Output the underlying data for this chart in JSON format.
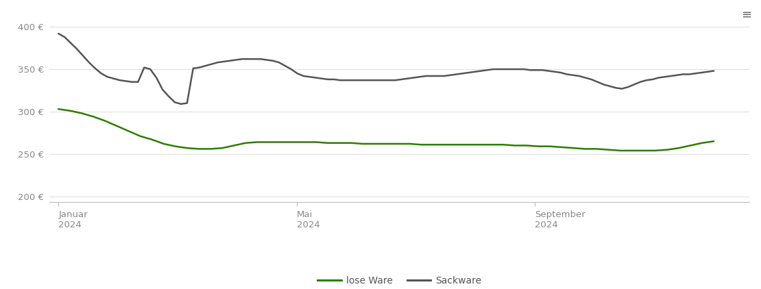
{
  "background_color": "#ffffff",
  "grid_color": "#e0e0e0",
  "ylim": [
    193,
    418
  ],
  "yticks": [
    200,
    250,
    300,
    350,
    400
  ],
  "ytick_labels": [
    "200 €",
    "250 €",
    "300 €",
    "350 €",
    "400 €"
  ],
  "xtick_positions": [
    0,
    4,
    8
  ],
  "xtick_labels": [
    "Januar\n2024",
    "Mai\n2024",
    "September\n2024"
  ],
  "line_lose_color": "#2e7d00",
  "line_sack_color": "#555555",
  "line_width": 1.8,
  "legend_labels": [
    "lose Ware",
    "Sackware"
  ],
  "lose_ware": [
    303,
    301,
    298,
    294,
    289,
    283,
    277,
    271,
    267,
    262,
    259,
    257,
    256,
    256,
    257,
    260,
    263,
    264,
    264,
    264,
    264,
    264,
    264,
    263,
    263,
    263,
    262,
    262,
    262,
    262,
    262,
    261,
    261,
    261,
    261,
    261,
    261,
    261,
    261,
    260,
    260,
    259,
    259,
    258,
    257,
    256,
    256,
    255,
    254,
    254,
    254,
    254,
    255,
    257,
    260,
    263,
    265
  ],
  "sackware": [
    392,
    388,
    381,
    374,
    366,
    358,
    351,
    345,
    341,
    339,
    337,
    336,
    335,
    335,
    352,
    350,
    340,
    326,
    318,
    311,
    309,
    310,
    351,
    352,
    354,
    356,
    358,
    359,
    360,
    361,
    362,
    362,
    362,
    362,
    361,
    360,
    358,
    354,
    350,
    345,
    342,
    341,
    340,
    339,
    338,
    338,
    337,
    337,
    337,
    337,
    337,
    337,
    337,
    337,
    337,
    337,
    338,
    339,
    340,
    341,
    342,
    342,
    342,
    342,
    343,
    344,
    345,
    346,
    347,
    348,
    349,
    350,
    350,
    350,
    350,
    350,
    350,
    349,
    349,
    349,
    348,
    347,
    346,
    344,
    343,
    342,
    340,
    338,
    335,
    332,
    330,
    328,
    327,
    329,
    332,
    335,
    337,
    338,
    340,
    341,
    342,
    343,
    344,
    344,
    345,
    346,
    347,
    348
  ],
  "menu_icon_color": "#666666"
}
